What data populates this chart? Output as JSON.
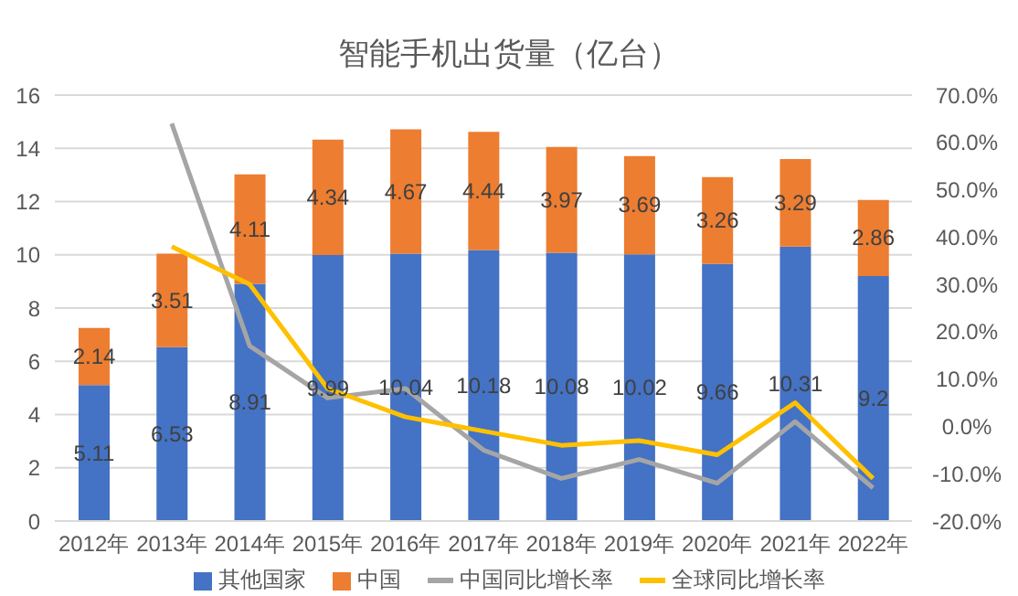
{
  "chart_data": {
    "type": "bar",
    "title": "智能手机出货量（亿台）",
    "categories": [
      "2012年",
      "2013年",
      "2014年",
      "2015年",
      "2016年",
      "2017年",
      "2018年",
      "2019年",
      "2020年",
      "2021年",
      "2022年"
    ],
    "stacked": true,
    "grid": "y",
    "legend": "bottom",
    "marker": "none",
    "ylim": [
      0,
      16
    ],
    "yticks": [
      0,
      2,
      4,
      6,
      8,
      10,
      12,
      14,
      16
    ],
    "y2lim": [
      -20,
      70
    ],
    "y2ticks": [
      {
        "value": -20,
        "label": "-20.0%"
      },
      {
        "value": -10,
        "label": "-10.0%"
      },
      {
        "value": 0,
        "label": "0.0%"
      },
      {
        "value": 10,
        "label": "10.0%"
      },
      {
        "value": 20,
        "label": "20.0%"
      },
      {
        "value": 30,
        "label": "30.0%"
      },
      {
        "value": 40,
        "label": "40.0%"
      },
      {
        "value": 50,
        "label": "50.0%"
      },
      {
        "value": 60,
        "label": "60.0%"
      },
      {
        "value": 70,
        "label": "70.0%"
      }
    ],
    "series": [
      {
        "name": "其他国家",
        "color": "#4472c4",
        "values": [
          5.11,
          6.53,
          8.91,
          9.99,
          10.04,
          10.18,
          10.08,
          10.02,
          9.66,
          10.31,
          9.2
        ],
        "value_labels": [
          "5.11",
          "6.53",
          "8.91",
          "9.99",
          "10.04",
          "10.18",
          "10.08",
          "10.02",
          "9.66",
          "10.31",
          "9.2"
        ]
      },
      {
        "name": "中国",
        "color": "#ed7d31",
        "values": [
          2.14,
          3.51,
          4.11,
          4.34,
          4.67,
          4.44,
          3.97,
          3.69,
          3.26,
          3.29,
          2.86
        ],
        "value_labels": [
          "2.14",
          "3.51",
          "4.11",
          "4.34",
          "4.67",
          "4.44",
          "3.97",
          "3.69",
          "3.26",
          "3.29",
          "2.86"
        ]
      },
      {
        "name": "中国同比增长率",
        "type": "line",
        "axis": "y2",
        "color": "#a5a5a5",
        "values": [
          null,
          64,
          17,
          6,
          8,
          -5,
          -11,
          -7,
          -12,
          1,
          -13
        ]
      },
      {
        "name": "全球同比增长率",
        "type": "line",
        "axis": "y2",
        "color": "#ffc000",
        "values": [
          null,
          38,
          30,
          8,
          2,
          -1,
          -4,
          -3,
          -6,
          5,
          -11
        ]
      }
    ]
  }
}
